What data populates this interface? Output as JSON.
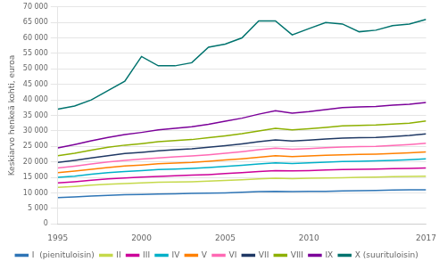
{
  "chart_data": {
    "type": "line",
    "y_label": "Keskiarvo henkeä kohti, euroa",
    "x": [
      1995,
      1996,
      1997,
      1998,
      1999,
      2000,
      2001,
      2002,
      2003,
      2004,
      2005,
      2006,
      2007,
      2008,
      2009,
      2010,
      2011,
      2012,
      2013,
      2014,
      2015,
      2016,
      2017
    ],
    "series": [
      {
        "name": "I  (pienituloisin)",
        "color": "#2E75B6",
        "values": [
          8500,
          8700,
          9000,
          9200,
          9400,
          9500,
          9600,
          9700,
          9800,
          9900,
          10000,
          10200,
          10400,
          10500,
          10400,
          10500,
          10500,
          10600,
          10700,
          10800,
          10900,
          11000,
          11000
        ]
      },
      {
        "name": "II",
        "color": "#C5D94B",
        "values": [
          11800,
          12100,
          12500,
          12800,
          13000,
          13200,
          13400,
          13500,
          13600,
          13800,
          14000,
          14200,
          14500,
          14700,
          14600,
          14700,
          14800,
          14900,
          15000,
          15100,
          15200,
          15300,
          15400
        ]
      },
      {
        "name": "III",
        "color": "#CC0099",
        "values": [
          13200,
          13600,
          14100,
          14500,
          14800,
          15100,
          15300,
          15500,
          15700,
          15900,
          16200,
          16500,
          16900,
          17200,
          17100,
          17200,
          17400,
          17500,
          17600,
          17700,
          17800,
          17900,
          18000
        ]
      },
      {
        "name": "IV",
        "color": "#00B0C8",
        "values": [
          15000,
          15400,
          16000,
          16500,
          16900,
          17200,
          17500,
          17700,
          17900,
          18200,
          18500,
          18900,
          19300,
          19700,
          19500,
          19700,
          19900,
          20100,
          20200,
          20300,
          20500,
          20700,
          21000
        ]
      },
      {
        "name": "V",
        "color": "#FF8000",
        "values": [
          16500,
          17000,
          17600,
          18200,
          18700,
          19000,
          19400,
          19600,
          19800,
          20200,
          20600,
          21000,
          21500,
          22000,
          21700,
          21900,
          22100,
          22300,
          22400,
          22500,
          22700,
          22900,
          23200
        ]
      },
      {
        "name": "VI",
        "color": "#FF69B4",
        "values": [
          18000,
          18600,
          19300,
          20000,
          20500,
          20900,
          21300,
          21600,
          21900,
          22300,
          22800,
          23300,
          23900,
          24400,
          24100,
          24300,
          24600,
          24800,
          24900,
          25000,
          25300,
          25600,
          26000
        ]
      },
      {
        "name": "VII",
        "color": "#1F3864",
        "values": [
          19800,
          20500,
          21300,
          22000,
          22700,
          23100,
          23600,
          23900,
          24200,
          24700,
          25200,
          25800,
          26500,
          27100,
          26700,
          27000,
          27400,
          27700,
          27800,
          27900,
          28200,
          28500,
          29000
        ]
      },
      {
        "name": "VIII",
        "color": "#8DB000",
        "values": [
          22000,
          22800,
          23800,
          24700,
          25400,
          25900,
          26500,
          26900,
          27200,
          27800,
          28400,
          29100,
          30000,
          30800,
          30300,
          30700,
          31100,
          31600,
          31800,
          31900,
          32200,
          32500,
          33200
        ]
      },
      {
        "name": "IX",
        "color": "#7B0099",
        "values": [
          24500,
          25600,
          26800,
          27900,
          28800,
          29500,
          30300,
          30800,
          31300,
          32100,
          33100,
          34100,
          35400,
          36500,
          35700,
          36200,
          36900,
          37500,
          37700,
          37900,
          38300,
          38600,
          39200
        ]
      },
      {
        "name": "X (suurituloisin)",
        "color": "#00736E",
        "values": [
          37000,
          38000,
          40000,
          43000,
          46000,
          54000,
          51000,
          51000,
          52000,
          57000,
          58000,
          60000,
          65500,
          65500,
          61000,
          63000,
          65000,
          64500,
          62000,
          62500,
          64000,
          64500,
          66000
        ]
      }
    ],
    "xlim": [
      1995,
      2017
    ],
    "xticks": [
      1995,
      2000,
      2005,
      2010,
      2017
    ],
    "ylim": [
      0,
      70000
    ],
    "yticks": [
      0,
      {
        "value": 5000,
        "label": "5 000"
      },
      {
        "value": 10000,
        "label": "10 000"
      },
      {
        "value": 15000,
        "label": "15 000"
      },
      {
        "value": 20000,
        "label": "20 000"
      },
      {
        "value": 25000,
        "label": "25 000"
      },
      {
        "value": 30000,
        "label": "30 000"
      },
      {
        "value": 35000,
        "label": "35 000"
      },
      {
        "value": 40000,
        "label": "40 000"
      },
      {
        "value": 45000,
        "label": "45 000"
      },
      {
        "value": 50000,
        "label": "50 000"
      },
      {
        "value": 55000,
        "label": "55 000"
      },
      {
        "value": 60000,
        "label": "60 000"
      },
      {
        "value": 65000,
        "label": "65 000"
      },
      {
        "value": 70000,
        "label": "70 000"
      }
    ],
    "grid": "y",
    "legend": "bottom"
  }
}
